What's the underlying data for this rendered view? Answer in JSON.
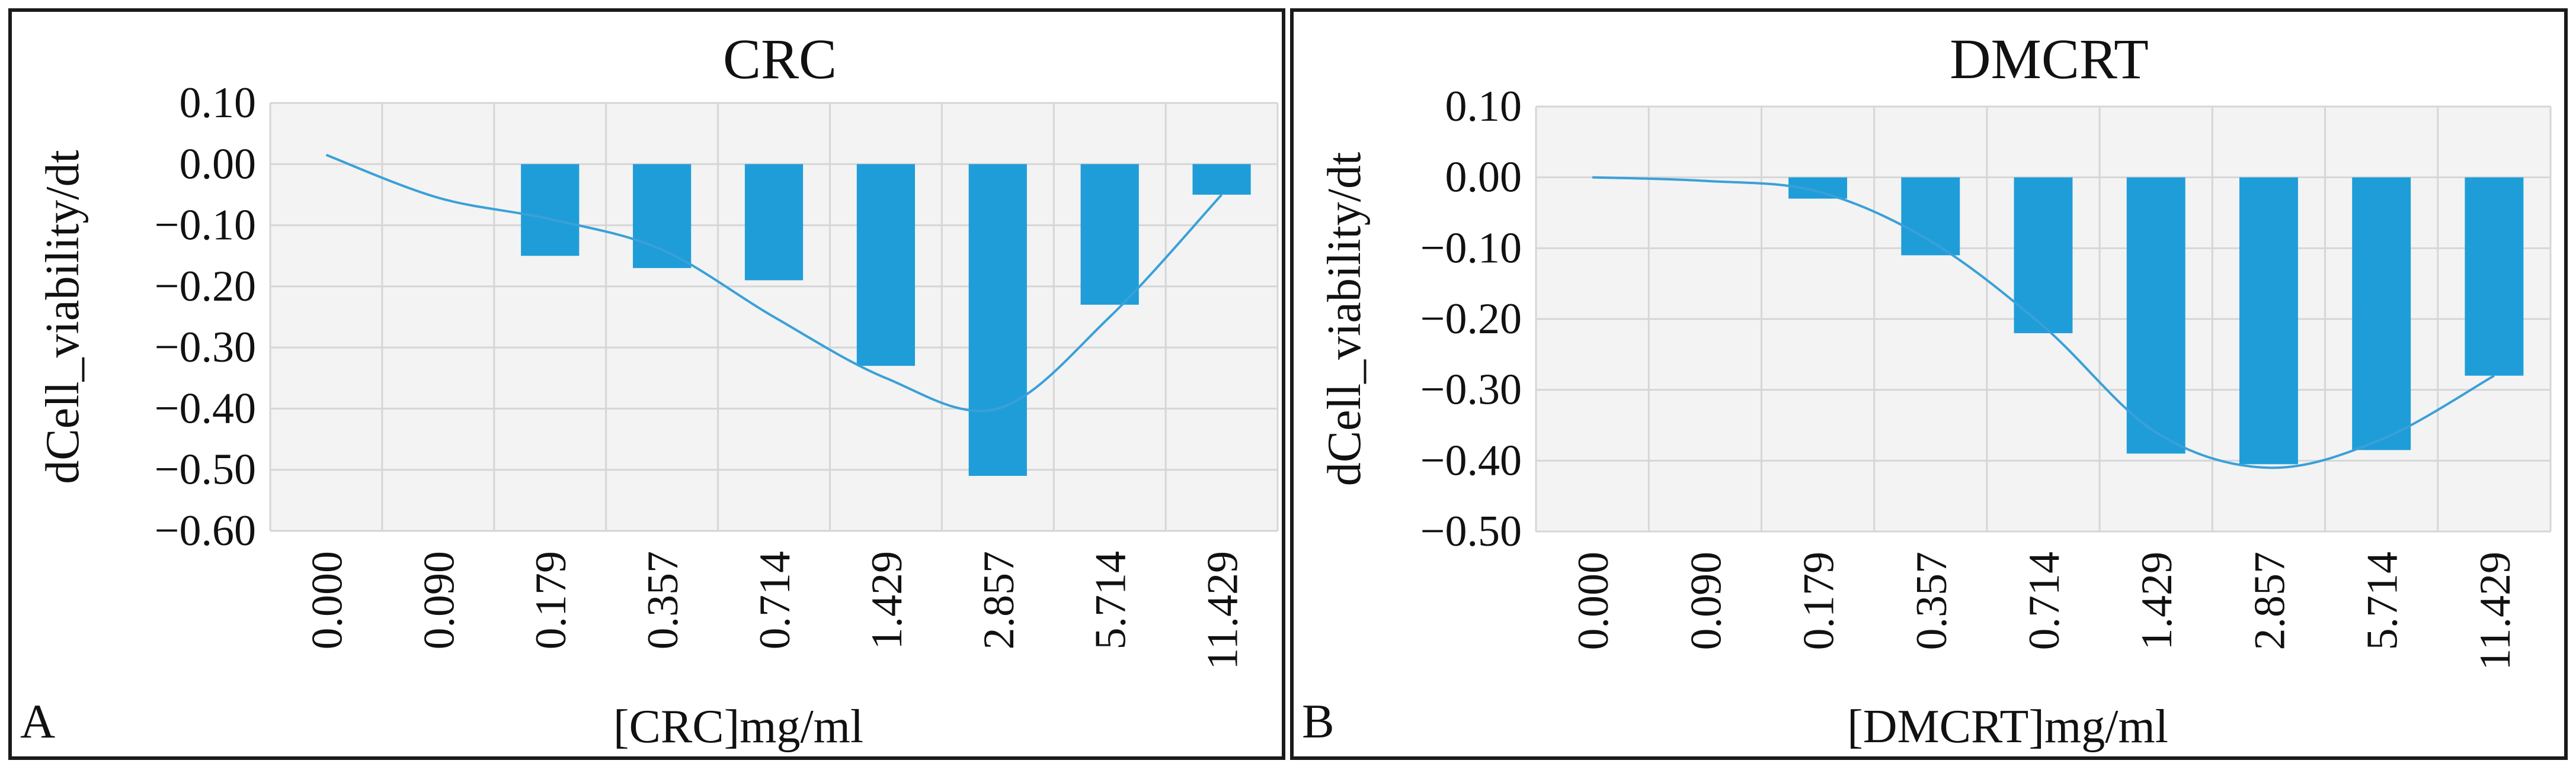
{
  "colors": {
    "bar": "#1e9dd9",
    "line": "#3aa0d8",
    "plot_bg": "#f3f3f3",
    "grid": "#d6d6d6",
    "border": "#1a1a1a"
  },
  "chart_data": [
    {
      "type": "bar",
      "panel_label": "A",
      "title": "CRC",
      "xlabel": "[CRC]mg/ml",
      "ylabel": "dCell_viability/dt",
      "categories": [
        "0.000",
        "0.090",
        "0.179",
        "0.357",
        "0.714",
        "1.429",
        "2.857",
        "5.714",
        "11.429"
      ],
      "series": [
        {
          "values": [
            0,
            0,
            -0.15,
            -0.17,
            -0.19,
            -0.33,
            -0.51,
            -0.23,
            -0.05
          ]
        }
      ],
      "trend_line": [
        0.015,
        -0.055,
        -0.09,
        -0.14,
        -0.25,
        -0.35,
        -0.4,
        -0.25,
        -0.05
      ],
      "ylim": [
        -0.6,
        0.1
      ],
      "yticks": [
        0.1,
        0.0,
        -0.1,
        -0.2,
        -0.3,
        -0.4,
        -0.5,
        -0.6
      ],
      "ytick_labels": [
        "0.10",
        "0.00",
        "−0.10",
        "−0.20",
        "−0.30",
        "−0.40",
        "−0.50",
        "−0.60"
      ],
      "grid": true,
      "legend": "none"
    },
    {
      "type": "bar",
      "panel_label": "B",
      "title": "DMCRT",
      "xlabel": "[DMCRT]mg/ml",
      "ylabel": "dCell_viability/dt",
      "categories": [
        "0.000",
        "0.090",
        "0.179",
        "0.357",
        "0.714",
        "1.429",
        "2.857",
        "5.714",
        "11.429"
      ],
      "series": [
        {
          "values": [
            0,
            0,
            -0.03,
            -0.11,
            -0.22,
            -0.39,
            -0.405,
            -0.385,
            -0.28
          ]
        }
      ],
      "trend_line": [
        0,
        -0.005,
        -0.02,
        -0.09,
        -0.21,
        -0.36,
        -0.41,
        -0.37,
        -0.28
      ],
      "ylim": [
        -0.5,
        0.1
      ],
      "yticks": [
        0.1,
        0.0,
        -0.1,
        -0.2,
        -0.3,
        -0.4,
        -0.5
      ],
      "ytick_labels": [
        "0.10",
        "0.00",
        "−0.10",
        "−0.20",
        "−0.30",
        "−0.40",
        "−0.50"
      ],
      "grid": true,
      "legend": "none"
    }
  ]
}
